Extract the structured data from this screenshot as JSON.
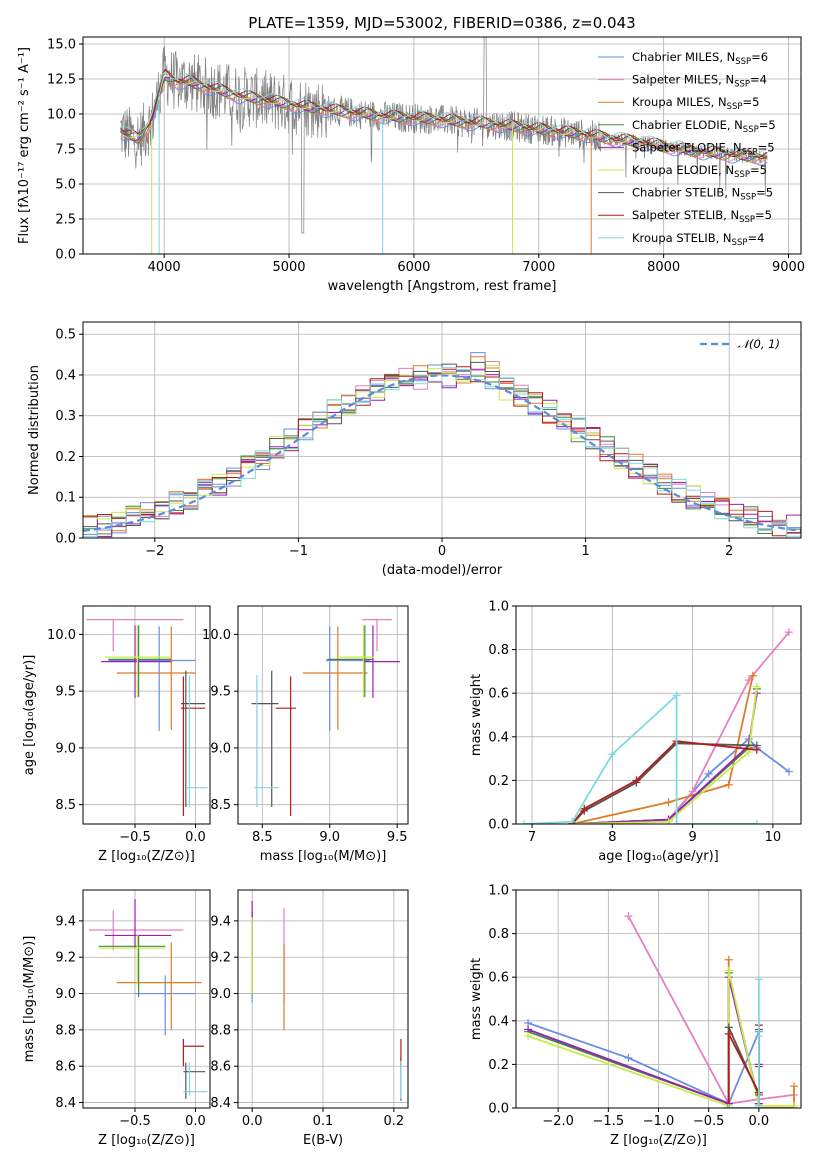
{
  "colors": {
    "Chabrier MILES": "#6a8fe0",
    "Salpeter MILES": "#e87fbf",
    "Kroupa MILES": "#e07b28",
    "Chabrier ELODIE": "#3d8c3d",
    "Salpeter ELODIE": "#9b1fb5",
    "Kroupa ELODIE": "#cbe84e",
    "Chabrier STELIB": "#555555",
    "Salpeter STELIB": "#b71c1c",
    "Kroupa STELIB": "#7fd9e0",
    "data": "#808080",
    "normal": "#5b8bd9"
  },
  "chart_data": [
    {
      "id": "spectrum",
      "type": "line",
      "title": "PLATE=1359, MJD=53002, FIBERID=0386, z=0.043",
      "xlabel": "wavelength [Angstrom, rest frame]",
      "ylabel": "Flux [fλ10⁻¹⁷ erg cm⁻² s⁻¹ A⁻¹]",
      "xlim": [
        3350,
        9100
      ],
      "ylim": [
        0,
        15.5
      ],
      "xticks": [
        "4000",
        "5000",
        "6000",
        "7000",
        "8000",
        "9000"
      ],
      "yticks": [
        "0.0",
        "2.5",
        "5.0",
        "7.5",
        "10.0",
        "12.5",
        "15.0"
      ],
      "legend": "top-right",
      "series": [
        {
          "name": "Chabrier MILES, N",
          "sub": "SSP",
          "suffix": "=6"
        },
        {
          "name": "Salpeter MILES, N",
          "sub": "SSP",
          "suffix": "=4"
        },
        {
          "name": "Kroupa MILES, N",
          "sub": "SSP",
          "suffix": "=5"
        },
        {
          "name": "Chabrier ELODIE, N",
          "sub": "SSP",
          "suffix": "=5"
        },
        {
          "name": "Salpeter ELODIE, N",
          "sub": "SSP",
          "suffix": "=5"
        },
        {
          "name": "Kroupa ELODIE, N",
          "sub": "SSP",
          "suffix": "=5"
        },
        {
          "name": "Chabrier STELIB, N",
          "sub": "SSP",
          "suffix": "=5"
        },
        {
          "name": "Salpeter STELIB, N",
          "sub": "SSP",
          "suffix": "=5"
        },
        {
          "name": "Kroupa STELIB, N",
          "sub": "SSP",
          "suffix": "=4"
        }
      ],
      "continuum": {
        "x": [
          3650,
          3700,
          3800,
          3900,
          4000,
          4100,
          4200,
          4300,
          4400,
          4600,
          4800,
          5000,
          5200,
          5400,
          5600,
          5800,
          6000,
          6200,
          6400,
          6600,
          6800,
          7000,
          7200,
          7400,
          7600,
          7800,
          8000,
          8200,
          8400,
          8600,
          8800
        ],
        "y": [
          8.8,
          8.5,
          8.2,
          9.5,
          12.8,
          12.3,
          12.3,
          12.0,
          11.8,
          11.3,
          11.0,
          10.7,
          10.4,
          10.2,
          10.0,
          9.8,
          9.7,
          9.6,
          9.4,
          9.3,
          9.1,
          8.9,
          8.7,
          8.5,
          8.2,
          8.0,
          7.7,
          7.4,
          7.2,
          7.0,
          6.9
        ]
      }
    },
    {
      "id": "residuals",
      "type": "line",
      "xlabel": "(data-model)/error",
      "ylabel": "Normed distribution",
      "xlim": [
        -2.5,
        2.5
      ],
      "ylim": [
        0,
        0.53
      ],
      "xticks": [
        "−2",
        "−1",
        "0",
        "1",
        "2"
      ],
      "yticks": [
        "0.0",
        "0.1",
        "0.2",
        "0.3",
        "0.4",
        "0.5"
      ],
      "legend": "top-right",
      "legend_label": "𝒩(0, 1)"
    },
    {
      "id": "age_vs_Z",
      "type": "scatter",
      "xlabel": "Z [log₁₀(Z/Z⊙)]",
      "ylabel": "age  [log₁₀(age/yr)]",
      "xlim": [
        -0.93,
        0.12
      ],
      "ylim": [
        8.33,
        10.25
      ],
      "xticks": [
        "−0.5",
        "0.0"
      ],
      "yticks": [
        "8.5",
        "9.0",
        "9.5",
        "10.0"
      ],
      "points": [
        {
          "s": "Chabrier MILES",
          "x": -0.3,
          "y": 9.77,
          "ex": [
            -0.72,
            0.0
          ],
          "ey": [
            9.15,
            10.07
          ]
        },
        {
          "s": "Salpeter MILES",
          "x": -0.68,
          "y": 10.13,
          "ex": [
            -0.9,
            -0.1
          ],
          "ey": [
            9.85,
            10.13
          ]
        },
        {
          "s": "Kroupa MILES",
          "x": -0.2,
          "y": 9.66,
          "ex": [
            -0.65,
            0.0
          ],
          "ey": [
            9.16,
            10.07
          ]
        },
        {
          "s": "Chabrier ELODIE",
          "x": -0.47,
          "y": 9.78,
          "ex": [
            -0.72,
            -0.2
          ],
          "ey": [
            9.45,
            10.08
          ]
        },
        {
          "s": "Salpeter ELODIE",
          "x": -0.5,
          "y": 9.76,
          "ex": [
            -0.78,
            -0.2
          ],
          "ey": [
            9.44,
            10.08
          ]
        },
        {
          "s": "Kroupa ELODIE",
          "x": -0.48,
          "y": 9.8,
          "ex": [
            -0.75,
            -0.2
          ],
          "ey": [
            9.44,
            10.08
          ]
        },
        {
          "s": "Chabrier STELIB",
          "x": -0.08,
          "y": 9.39,
          "ex": [
            -0.12,
            0.08
          ],
          "ey": [
            8.48,
            9.68
          ]
        },
        {
          "s": "Salpeter STELIB",
          "x": -0.1,
          "y": 9.35,
          "ex": [
            -0.12,
            0.08
          ],
          "ey": [
            8.4,
            9.63
          ]
        },
        {
          "s": "Kroupa STELIB",
          "x": -0.05,
          "y": 8.65,
          "ex": [
            -0.07,
            0.1
          ],
          "ey": [
            8.48,
            9.64
          ]
        }
      ]
    },
    {
      "id": "age_vs_mass",
      "type": "scatter",
      "xlabel": "mass [log₁₀(M/M⊙)]",
      "xlim": [
        8.32,
        9.58
      ],
      "ylim": [
        8.33,
        10.25
      ],
      "xticks": [
        "8.5",
        "9.0",
        "9.5"
      ],
      "yticks": [
        "8.5",
        "9.0",
        "9.5",
        "10.0"
      ],
      "points": [
        {
          "s": "Chabrier MILES",
          "x": 9.0,
          "y": 9.77,
          "ex": [
            8.97,
            9.3
          ],
          "ey": [
            9.15,
            10.07
          ]
        },
        {
          "s": "Salpeter MILES",
          "x": 9.35,
          "y": 10.13,
          "ex": [
            9.24,
            9.46
          ],
          "ey": [
            9.85,
            10.13
          ]
        },
        {
          "s": "Kroupa MILES",
          "x": 9.06,
          "y": 9.66,
          "ex": [
            8.8,
            9.28
          ],
          "ey": [
            9.16,
            10.07
          ]
        },
        {
          "s": "Chabrier ELODIE",
          "x": 9.26,
          "y": 9.78,
          "ex": [
            8.98,
            9.32
          ],
          "ey": [
            9.45,
            10.08
          ]
        },
        {
          "s": "Salpeter ELODIE",
          "x": 9.32,
          "y": 9.76,
          "ex": [
            9.25,
            9.52
          ],
          "ey": [
            9.44,
            10.08
          ]
        },
        {
          "s": "Kroupa ELODIE",
          "x": 9.25,
          "y": 9.8,
          "ex": [
            9.05,
            9.33
          ],
          "ey": [
            9.44,
            10.08
          ]
        },
        {
          "s": "Chabrier STELIB",
          "x": 8.57,
          "y": 9.39,
          "ex": [
            8.42,
            8.62
          ],
          "ey": [
            8.48,
            9.68
          ]
        },
        {
          "s": "Salpeter STELIB",
          "x": 8.71,
          "y": 9.35,
          "ex": [
            8.6,
            8.75
          ],
          "ey": [
            8.4,
            9.63
          ]
        },
        {
          "s": "Kroupa STELIB",
          "x": 8.46,
          "y": 8.65,
          "ex": [
            8.44,
            8.62
          ],
          "ey": [
            8.48,
            9.64
          ]
        }
      ]
    },
    {
      "id": "weight_vs_age",
      "type": "line",
      "xlabel": "age  [log₁₀(age/yr)]",
      "ylabel": "mass weight",
      "xlim": [
        6.8,
        10.35
      ],
      "ylim": [
        0,
        1.0
      ],
      "xticks": [
        "7",
        "8",
        "9",
        "10"
      ],
      "yticks": [
        "0.0",
        "0.2",
        "0.4",
        "0.6",
        "0.8",
        "1.0"
      ],
      "series": [
        {
          "s": "Chabrier MILES",
          "x": [
            7.5,
            8.7,
            9.2,
            9.7,
            9.8,
            10.2
          ],
          "y": [
            0.0,
            0.02,
            0.23,
            0.39,
            0.35,
            0.24
          ]
        },
        {
          "s": "Salpeter MILES",
          "x": [
            8.7,
            9.0,
            9.7,
            10.2
          ],
          "y": [
            0.02,
            0.15,
            0.66,
            0.88
          ]
        },
        {
          "s": "Kroupa MILES",
          "x": [
            7.5,
            8.7,
            9.45,
            9.75
          ],
          "y": [
            0.0,
            0.1,
            0.18,
            0.68
          ]
        },
        {
          "s": "Chabrier ELODIE",
          "x": [
            7.5,
            8.7,
            9.7,
            9.8
          ],
          "y": [
            0.0,
            0.02,
            0.35,
            0.62
          ]
        },
        {
          "s": "Salpeter ELODIE",
          "x": [
            7.5,
            8.7,
            9.7,
            9.8
          ],
          "y": [
            0.0,
            0.02,
            0.36,
            0.6
          ]
        },
        {
          "s": "Kroupa ELODIE",
          "x": [
            7.5,
            8.7,
            9.7,
            9.8
          ],
          "y": [
            0.0,
            0.01,
            0.33,
            0.63
          ]
        },
        {
          "s": "Chabrier STELIB",
          "x": [
            7.5,
            7.65,
            8.3,
            8.8,
            9.8
          ],
          "y": [
            0.0,
            0.06,
            0.19,
            0.37,
            0.36
          ]
        },
        {
          "s": "Salpeter STELIB",
          "x": [
            7.5,
            7.65,
            8.3,
            8.8,
            9.8
          ],
          "y": [
            0.0,
            0.07,
            0.2,
            0.38,
            0.34
          ]
        },
        {
          "s": "Kroupa STELIB",
          "x": [
            6.9,
            7.5,
            8.0,
            8.8,
            8.8,
            9.8
          ],
          "y": [
            0.0,
            0.01,
            0.32,
            0.59,
            0.0,
            0.0
          ]
        }
      ]
    },
    {
      "id": "mass_vs_Z",
      "type": "scatter",
      "xlabel": "Z [log₁₀(Z/Z⊙)]",
      "ylabel": "mass [log₁₀(M/M⊙)]",
      "xlim": [
        -0.93,
        0.12
      ],
      "ylim": [
        8.37,
        9.57
      ],
      "xticks": [
        "−0.5",
        "0.0"
      ],
      "yticks": [
        "8.4",
        "8.6",
        "8.8",
        "9.0",
        "9.2",
        "9.4"
      ],
      "points": [
        {
          "s": "Chabrier MILES",
          "x": -0.25,
          "y": 9.0,
          "ex": [
            -0.5,
            0.0
          ],
          "ey": [
            8.77,
            9.1
          ]
        },
        {
          "s": "Salpeter MILES",
          "x": -0.68,
          "y": 9.35,
          "ex": [
            -0.88,
            -0.1
          ],
          "ey": [
            9.24,
            9.46
          ]
        },
        {
          "s": "Kroupa MILES",
          "x": -0.2,
          "y": 9.06,
          "ex": [
            -0.65,
            0.05
          ],
          "ey": [
            8.8,
            9.28
          ]
        },
        {
          "s": "Chabrier ELODIE",
          "x": -0.47,
          "y": 9.26,
          "ex": [
            -0.8,
            -0.25
          ],
          "ey": [
            8.98,
            9.32
          ]
        },
        {
          "s": "Salpeter ELODIE",
          "x": -0.5,
          "y": 9.32,
          "ex": [
            -0.75,
            -0.2
          ],
          "ey": [
            9.25,
            9.52
          ]
        },
        {
          "s": "Kroupa ELODIE",
          "x": -0.48,
          "y": 9.25,
          "ex": [
            -0.8,
            -0.25
          ],
          "ey": [
            9.05,
            9.33
          ]
        },
        {
          "s": "Chabrier STELIB",
          "x": -0.08,
          "y": 8.57,
          "ex": [
            -0.1,
            0.08
          ],
          "ey": [
            8.42,
            8.62
          ]
        },
        {
          "s": "Salpeter STELIB",
          "x": -0.1,
          "y": 8.71,
          "ex": [
            -0.1,
            0.07
          ],
          "ey": [
            8.6,
            8.75
          ]
        },
        {
          "s": "Kroupa STELIB",
          "x": -0.05,
          "y": 8.46,
          "ex": [
            -0.1,
            0.1
          ],
          "ey": [
            8.44,
            8.62
          ]
        }
      ]
    },
    {
      "id": "mass_vs_ebv",
      "type": "scatter",
      "xlabel": "E(B-V)",
      "xlim": [
        -0.02,
        0.22
      ],
      "ylim": [
        8.37,
        9.57
      ],
      "xticks": [
        "0.0",
        "0.1",
        "0.2"
      ],
      "yticks": [
        "8.4",
        "8.6",
        "8.8",
        "9.0",
        "9.2",
        "9.4"
      ],
      "points": [
        {
          "s": "Chabrier MILES",
          "x": 0.0,
          "y": 9.0,
          "ex": [
            0.0,
            0.0
          ],
          "ey": [
            8.95,
            9.45
          ]
        },
        {
          "s": "Salpeter MILES",
          "x": 0.045,
          "y": 9.35,
          "ex": [
            0.045,
            0.045
          ],
          "ey": [
            8.95,
            9.47
          ]
        },
        {
          "s": "Kroupa MILES",
          "x": 0.045,
          "y": 9.06,
          "ex": [
            0.045,
            0.045
          ],
          "ey": [
            8.8,
            9.27
          ]
        },
        {
          "s": "Chabrier ELODIE",
          "x": 0.0,
          "y": 9.26,
          "ex": [
            0.0,
            0.0
          ],
          "ey": [
            9.0,
            9.45
          ]
        },
        {
          "s": "Salpeter ELODIE",
          "x": 0.0,
          "y": 9.32,
          "ex": [
            0.0,
            0.0
          ],
          "ey": [
            9.2,
            9.51
          ]
        },
        {
          "s": "Kroupa ELODIE",
          "x": 0.0,
          "y": 9.25,
          "ex": [
            0.0,
            0.0
          ],
          "ey": [
            9.0,
            9.42
          ]
        },
        {
          "s": "Chabrier STELIB",
          "x": 0.21,
          "y": 8.57,
          "ex": [
            0.21,
            0.21
          ],
          "ey": [
            8.41,
            8.65
          ]
        },
        {
          "s": "Salpeter STELIB",
          "x": 0.21,
          "y": 8.71,
          "ex": [
            0.21,
            0.21
          ],
          "ey": [
            8.6,
            8.75
          ]
        },
        {
          "s": "Kroupa STELIB",
          "x": 0.21,
          "y": 8.46,
          "ex": [
            0.21,
            0.21
          ],
          "ey": [
            8.42,
            8.63
          ]
        }
      ]
    },
    {
      "id": "weight_vs_Z",
      "type": "line",
      "xlabel": "Z [log₁₀(Z/Z⊙)]",
      "ylabel": "mass weight",
      "xlim": [
        -2.42,
        0.42
      ],
      "ylim": [
        0,
        1.0
      ],
      "xticks": [
        "−2.0",
        "−1.5",
        "−1.0",
        "−0.5",
        "0.0"
      ],
      "yticks": [
        "0.0",
        "0.2",
        "0.4",
        "0.6",
        "0.8",
        "1.0"
      ],
      "series": [
        {
          "s": "Chabrier MILES",
          "x": [
            -2.3,
            -1.3,
            -0.3,
            0.0,
            0.0,
            0.35
          ],
          "y": [
            0.39,
            0.23,
            0.02,
            0.35,
            0.0,
            0.0
          ]
        },
        {
          "s": "Salpeter MILES",
          "x": [
            -1.3,
            -0.3,
            0.0,
            0.35
          ],
          "y": [
            0.88,
            0.02,
            0.04,
            0.06
          ]
        },
        {
          "s": "Kroupa MILES",
          "x": [
            -0.3,
            -0.3,
            0.0,
            0.35,
            0.35
          ],
          "y": [
            0.68,
            0.0,
            0.0,
            0.0,
            0.1
          ]
        },
        {
          "s": "Chabrier ELODIE",
          "x": [
            -2.3,
            -0.3,
            -0.3,
            0.0
          ],
          "y": [
            0.35,
            0.02,
            0.62,
            0.02
          ]
        },
        {
          "s": "Salpeter ELODIE",
          "x": [
            -2.3,
            -0.3,
            -0.3,
            0.0,
            0.0
          ],
          "y": [
            0.36,
            0.02,
            0.6,
            0.02,
            0.2
          ]
        },
        {
          "s": "Kroupa ELODIE",
          "x": [
            -2.3,
            -0.3,
            -0.3,
            0.0,
            0.35
          ],
          "y": [
            0.33,
            0.01,
            0.63,
            0.01,
            0.01
          ]
        },
        {
          "s": "Chabrier STELIB",
          "x": [
            -0.3,
            -0.3,
            0.0,
            0.0,
            0.0
          ],
          "y": [
            0.0,
            0.37,
            0.06,
            0.36,
            0.19
          ]
        },
        {
          "s": "Salpeter STELIB",
          "x": [
            -0.3,
            -0.3,
            0.0,
            0.0
          ],
          "y": [
            0.0,
            0.34,
            0.07,
            0.38
          ]
        },
        {
          "s": "Kroupa STELIB",
          "x": [
            -0.3,
            -0.3,
            0.0,
            0.0,
            0.0,
            0.0
          ],
          "y": [
            0.0,
            0.0,
            0.0,
            0.59,
            0.33,
            0.01
          ]
        }
      ]
    }
  ]
}
